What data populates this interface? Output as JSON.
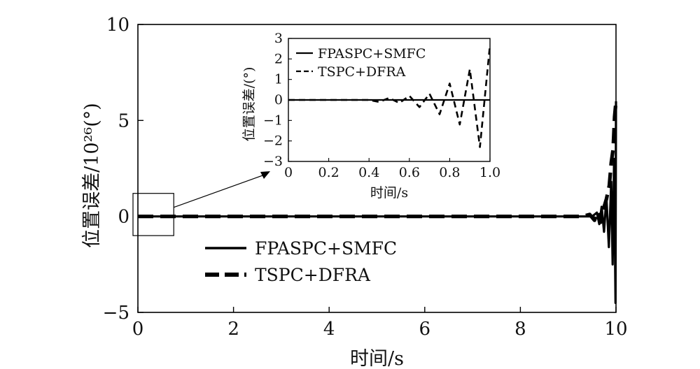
{
  "chart_data": [
    {
      "id": "main",
      "type": "line",
      "title": "",
      "xlabel": "时间/s",
      "ylabel": "位置误差/10²⁶(°)",
      "xlim": [
        0,
        10
      ],
      "ylim": [
        -5,
        10
      ],
      "xticks": [
        "0",
        "2",
        "4",
        "6",
        "8",
        "10"
      ],
      "xtick_values": [
        0,
        2,
        4,
        6,
        8,
        10
      ],
      "yticks": [
        "−5",
        "0",
        "5",
        "10"
      ],
      "ytick_values": [
        -5,
        0,
        5,
        10
      ],
      "grid": false,
      "legend_position": "bottom-left",
      "series": [
        {
          "name": "FPASPC+SMFC",
          "style": "solid",
          "color": "#000000",
          "x": [
            0,
            9.2,
            9.5,
            9.6,
            9.65,
            9.7,
            9.75,
            9.8,
            9.85,
            9.9,
            9.93,
            9.96,
            9.99,
            10
          ],
          "y": [
            0,
            0,
            0,
            0.2,
            -0.4,
            0.5,
            -0.8,
            1.0,
            -1.6,
            1.8,
            -2.5,
            3.0,
            -4.5,
            6.0
          ]
        },
        {
          "name": "TSPC+DFRA",
          "style": "dashed",
          "color": "#000000",
          "x": [
            0,
            9.0,
            9.3,
            9.45,
            9.55,
            9.62,
            9.68,
            9.74,
            9.8,
            9.86,
            9.9,
            9.94,
            9.97,
            10
          ],
          "y": [
            0,
            0,
            0,
            0.1,
            -0.2,
            0.25,
            -0.3,
            0.4,
            0.9,
            1.6,
            2.8,
            3.5,
            5.2,
            6.0
          ]
        }
      ],
      "zoom_box": {
        "x": [
          0,
          0.75
        ],
        "y": [
          -1,
          1.2
        ]
      }
    },
    {
      "id": "inset",
      "type": "line",
      "title": "",
      "xlabel": "时间/s",
      "ylabel": "位置误差/(°)",
      "xlim": [
        0,
        1.0
      ],
      "ylim": [
        -3,
        3
      ],
      "xticks": [
        "0",
        "0.2",
        "0.4",
        "0.6",
        "0.8",
        "1.0"
      ],
      "xtick_values": [
        0,
        0.2,
        0.4,
        0.6,
        0.8,
        1.0
      ],
      "yticks": [
        "3",
        "2",
        "1",
        "0",
        "−1",
        "−2",
        "−3"
      ],
      "ytick_values": [
        3,
        2,
        1,
        0,
        -1,
        -2,
        -3
      ],
      "grid": false,
      "legend_position": "top-left",
      "series": [
        {
          "name": "FPASPC+SMFC",
          "style": "solid",
          "color": "#000000",
          "x": [
            0,
            1.0
          ],
          "y": [
            0,
            0
          ]
        },
        {
          "name": "TSPC+DFRA",
          "style": "dashed",
          "color": "#000000",
          "x": [
            0,
            0.4,
            0.45,
            0.5,
            0.55,
            0.6,
            0.65,
            0.7,
            0.75,
            0.8,
            0.85,
            0.9,
            0.95,
            1.0
          ],
          "y": [
            0,
            0,
            -0.1,
            0.1,
            -0.15,
            0.2,
            -0.35,
            0.3,
            -0.7,
            0.8,
            -1.2,
            1.5,
            -2.3,
            2.7
          ]
        }
      ]
    }
  ]
}
